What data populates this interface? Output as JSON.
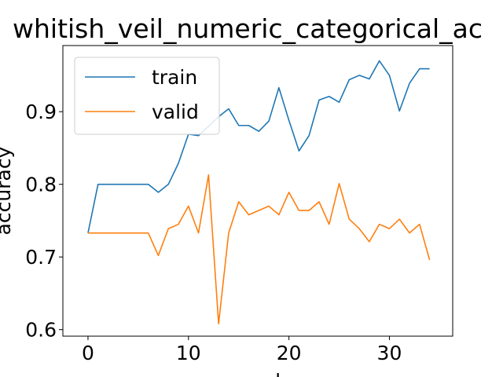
{
  "chart_data": {
    "type": "line",
    "title": "whitish_veil_numeric_categorical_ac",
    "xlabel": "epoch",
    "ylabel": "accuracy",
    "xlim": [
      -2.5,
      36.3
    ],
    "ylim": [
      0.591,
      0.991
    ],
    "xticks": [
      0,
      10,
      20,
      30
    ],
    "xtick_labels": [
      "0",
      "10",
      "20",
      "30"
    ],
    "yticks": [
      0.6,
      0.7,
      0.8,
      0.9
    ],
    "ytick_labels": [
      "0.6",
      "0.7",
      "0.8",
      "0.9"
    ],
    "grid": false,
    "legend_position": "upper-left",
    "x": [
      0,
      1,
      2,
      3,
      4,
      5,
      6,
      7,
      8,
      9,
      10,
      11,
      12,
      13,
      14,
      15,
      16,
      17,
      18,
      19,
      20,
      21,
      22,
      23,
      24,
      25,
      26,
      27,
      28,
      29,
      30,
      31,
      32,
      33,
      34
    ],
    "series": [
      {
        "name": "train",
        "color": "#1f77b4",
        "values": [
          0.733,
          0.8,
          0.8,
          0.8,
          0.8,
          0.8,
          0.8,
          0.789,
          0.8,
          0.829,
          0.869,
          0.867,
          0.88,
          0.893,
          0.904,
          0.881,
          0.881,
          0.873,
          0.887,
          0.933,
          0.888,
          0.846,
          0.867,
          0.916,
          0.921,
          0.913,
          0.944,
          0.95,
          0.945,
          0.97,
          0.95,
          0.901,
          0.939,
          0.959,
          0.959
        ]
      },
      {
        "name": "valid",
        "color": "#ff7f0e",
        "values": [
          0.733,
          0.733,
          0.733,
          0.733,
          0.733,
          0.733,
          0.733,
          0.702,
          0.739,
          0.745,
          0.77,
          0.733,
          0.813,
          0.608,
          0.733,
          0.776,
          0.758,
          0.764,
          0.77,
          0.758,
          0.789,
          0.764,
          0.764,
          0.776,
          0.745,
          0.801,
          0.752,
          0.739,
          0.721,
          0.745,
          0.739,
          0.752,
          0.733,
          0.745,
          0.696
        ]
      }
    ]
  }
}
